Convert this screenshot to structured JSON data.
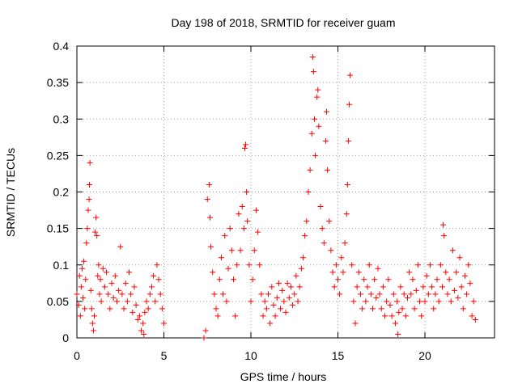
{
  "chart_data": {
    "type": "scatter",
    "title": "Day 198 of 2018, SRMTID for receiver guam",
    "xlabel": "GPS time / hours",
    "ylabel": "SRMTID / TECUs",
    "xlim": [
      0,
      24
    ],
    "ylim": [
      0,
      0.4
    ],
    "xticks": [
      0,
      5,
      10,
      15,
      20
    ],
    "yticks": [
      0,
      0.05,
      0.1,
      0.15,
      0.2,
      0.25,
      0.3,
      0.35,
      0.4
    ],
    "grid": true,
    "marker": "+",
    "color": "#ff0000",
    "series": [
      {
        "name": "SRMTID",
        "points": [
          [
            0.0,
            0.06
          ],
          [
            0.1,
            0.045
          ],
          [
            0.15,
            0.085
          ],
          [
            0.2,
            0.03
          ],
          [
            0.25,
            0.07
          ],
          [
            0.3,
            0.095
          ],
          [
            0.35,
            0.055
          ],
          [
            0.4,
            0.105
          ],
          [
            0.45,
            0.04
          ],
          [
            0.5,
            0.08
          ],
          [
            0.55,
            0.13
          ],
          [
            0.6,
            0.15
          ],
          [
            0.65,
            0.175
          ],
          [
            0.7,
            0.19
          ],
          [
            0.72,
            0.21
          ],
          [
            0.75,
            0.24
          ],
          [
            0.8,
            0.065
          ],
          [
            0.85,
            0.04
          ],
          [
            0.9,
            0.02
          ],
          [
            0.95,
            0.01
          ],
          [
            1.0,
            0.03
          ],
          [
            1.05,
            0.145
          ],
          [
            1.1,
            0.165
          ],
          [
            1.15,
            0.14
          ],
          [
            1.2,
            0.085
          ],
          [
            1.25,
            0.1
          ],
          [
            1.3,
            0.06
          ],
          [
            1.35,
            0.08
          ],
          [
            1.4,
            0.05
          ],
          [
            1.5,
            0.095
          ],
          [
            1.6,
            0.07
          ],
          [
            1.7,
            0.09
          ],
          [
            1.8,
            0.06
          ],
          [
            1.9,
            0.04
          ],
          [
            2.0,
            0.075
          ],
          [
            2.1,
            0.055
          ],
          [
            2.2,
            0.085
          ],
          [
            2.3,
            0.05
          ],
          [
            2.4,
            0.065
          ],
          [
            2.5,
            0.125
          ],
          [
            2.6,
            0.06
          ],
          [
            2.7,
            0.04
          ],
          [
            2.8,
            0.075
          ],
          [
            2.9,
            0.05
          ],
          [
            3.0,
            0.09
          ],
          [
            3.1,
            0.06
          ],
          [
            3.2,
            0.035
          ],
          [
            3.3,
            0.07
          ],
          [
            3.4,
            0.045
          ],
          [
            3.5,
            0.025
          ],
          [
            3.6,
            0.03
          ],
          [
            3.7,
            0.01
          ],
          [
            3.8,
            0.02
          ],
          [
            3.85,
            0.005
          ],
          [
            3.9,
            0.035
          ],
          [
            4.0,
            0.05
          ],
          [
            4.1,
            0.04
          ],
          [
            4.2,
            0.06
          ],
          [
            4.3,
            0.07
          ],
          [
            4.4,
            0.085
          ],
          [
            4.5,
            0.05
          ],
          [
            4.6,
            0.1
          ],
          [
            4.7,
            0.08
          ],
          [
            4.8,
            0.06
          ],
          [
            4.9,
            0.04
          ],
          [
            5.0,
            0.02
          ],
          [
            7.3,
            0.0
          ],
          [
            7.4,
            0.01
          ],
          [
            7.5,
            0.19
          ],
          [
            7.6,
            0.21
          ],
          [
            7.65,
            0.165
          ],
          [
            7.7,
            0.125
          ],
          [
            7.8,
            0.09
          ],
          [
            7.9,
            0.06
          ],
          [
            8.0,
            0.04
          ],
          [
            8.1,
            0.03
          ],
          [
            8.2,
            0.08
          ],
          [
            8.3,
            0.11
          ],
          [
            8.4,
            0.06
          ],
          [
            8.5,
            0.14
          ],
          [
            8.6,
            0.05
          ],
          [
            8.7,
            0.095
          ],
          [
            8.8,
            0.15
          ],
          [
            8.9,
            0.12
          ],
          [
            9.0,
            0.08
          ],
          [
            9.1,
            0.03
          ],
          [
            9.2,
            0.1
          ],
          [
            9.3,
            0.17
          ],
          [
            9.4,
            0.12
          ],
          [
            9.5,
            0.18
          ],
          [
            9.6,
            0.15
          ],
          [
            9.65,
            0.26
          ],
          [
            9.7,
            0.265
          ],
          [
            9.75,
            0.2
          ],
          [
            9.8,
            0.16
          ],
          [
            9.9,
            0.1
          ],
          [
            10.0,
            0.05
          ],
          [
            10.1,
            0.08
          ],
          [
            10.2,
            0.12
          ],
          [
            10.3,
            0.175
          ],
          [
            10.4,
            0.145
          ],
          [
            10.5,
            0.1
          ],
          [
            10.6,
            0.06
          ],
          [
            10.7,
            0.03
          ],
          [
            10.8,
            0.05
          ],
          [
            10.9,
            0.04
          ],
          [
            11.0,
            0.06
          ],
          [
            11.1,
            0.02
          ],
          [
            11.2,
            0.07
          ],
          [
            11.3,
            0.045
          ],
          [
            11.4,
            0.03
          ],
          [
            11.5,
            0.055
          ],
          [
            11.6,
            0.075
          ],
          [
            11.7,
            0.04
          ],
          [
            11.8,
            0.065
          ],
          [
            11.9,
            0.05
          ],
          [
            12.0,
            0.035
          ],
          [
            12.1,
            0.075
          ],
          [
            12.2,
            0.055
          ],
          [
            12.3,
            0.07
          ],
          [
            12.4,
            0.045
          ],
          [
            12.5,
            0.06
          ],
          [
            12.6,
            0.085
          ],
          [
            12.7,
            0.05
          ],
          [
            12.8,
            0.07
          ],
          [
            12.9,
            0.095
          ],
          [
            13.0,
            0.11
          ],
          [
            13.1,
            0.14
          ],
          [
            13.2,
            0.16
          ],
          [
            13.3,
            0.2
          ],
          [
            13.4,
            0.23
          ],
          [
            13.5,
            0.28
          ],
          [
            13.55,
            0.385
          ],
          [
            13.6,
            0.365
          ],
          [
            13.65,
            0.3
          ],
          [
            13.7,
            0.25
          ],
          [
            13.8,
            0.33
          ],
          [
            13.85,
            0.34
          ],
          [
            13.9,
            0.29
          ],
          [
            14.0,
            0.18
          ],
          [
            14.1,
            0.15
          ],
          [
            14.2,
            0.13
          ],
          [
            14.3,
            0.27
          ],
          [
            14.35,
            0.31
          ],
          [
            14.4,
            0.23
          ],
          [
            14.5,
            0.16
          ],
          [
            14.6,
            0.12
          ],
          [
            14.7,
            0.09
          ],
          [
            14.8,
            0.07
          ],
          [
            14.9,
            0.1
          ],
          [
            15.0,
            0.08
          ],
          [
            15.1,
            0.06
          ],
          [
            15.2,
            0.11
          ],
          [
            15.3,
            0.09
          ],
          [
            15.4,
            0.13
          ],
          [
            15.5,
            0.17
          ],
          [
            15.55,
            0.21
          ],
          [
            15.6,
            0.27
          ],
          [
            15.65,
            0.32
          ],
          [
            15.7,
            0.36
          ],
          [
            15.8,
            0.1
          ],
          [
            15.9,
            0.05
          ],
          [
            16.0,
            0.02
          ],
          [
            16.1,
            0.07
          ],
          [
            16.2,
            0.09
          ],
          [
            16.3,
            0.06
          ],
          [
            16.4,
            0.04
          ],
          [
            16.5,
            0.08
          ],
          [
            16.6,
            0.05
          ],
          [
            16.7,
            0.07
          ],
          [
            16.8,
            0.1
          ],
          [
            16.9,
            0.06
          ],
          [
            17.0,
            0.04
          ],
          [
            17.1,
            0.08
          ],
          [
            17.2,
            0.055
          ],
          [
            17.3,
            0.095
          ],
          [
            17.4,
            0.06
          ],
          [
            17.5,
            0.04
          ],
          [
            17.6,
            0.07
          ],
          [
            17.7,
            0.03
          ],
          [
            17.8,
            0.05
          ],
          [
            17.9,
            0.08
          ],
          [
            18.0,
            0.045
          ],
          [
            18.1,
            0.03
          ],
          [
            18.2,
            0.06
          ],
          [
            18.3,
            0.02
          ],
          [
            18.4,
            0.05
          ],
          [
            18.45,
            0.005
          ],
          [
            18.5,
            0.035
          ],
          [
            18.6,
            0.07
          ],
          [
            18.7,
            0.04
          ],
          [
            18.8,
            0.06
          ],
          [
            18.9,
            0.03
          ],
          [
            19.0,
            0.055
          ],
          [
            19.1,
            0.09
          ],
          [
            19.2,
            0.06
          ],
          [
            19.3,
            0.08
          ],
          [
            19.4,
            0.04
          ],
          [
            19.5,
            0.065
          ],
          [
            19.6,
            0.1
          ],
          [
            19.7,
            0.05
          ],
          [
            19.8,
            0.03
          ],
          [
            19.9,
            0.07
          ],
          [
            20.0,
            0.05
          ],
          [
            20.1,
            0.085
          ],
          [
            20.2,
            0.06
          ],
          [
            20.3,
            0.1
          ],
          [
            20.4,
            0.07
          ],
          [
            20.5,
            0.04
          ],
          [
            20.6,
            0.06
          ],
          [
            20.7,
            0.08
          ],
          [
            20.8,
            0.05
          ],
          [
            20.9,
            0.1
          ],
          [
            21.0,
            0.07
          ],
          [
            21.05,
            0.155
          ],
          [
            21.1,
            0.14
          ],
          [
            21.2,
            0.09
          ],
          [
            21.3,
            0.06
          ],
          [
            21.4,
            0.08
          ],
          [
            21.5,
            0.05
          ],
          [
            21.6,
            0.12
          ],
          [
            21.7,
            0.065
          ],
          [
            21.8,
            0.09
          ],
          [
            21.9,
            0.055
          ],
          [
            22.0,
            0.11
          ],
          [
            22.1,
            0.07
          ],
          [
            22.2,
            0.04
          ],
          [
            22.3,
            0.085
          ],
          [
            22.4,
            0.06
          ],
          [
            22.5,
            0.1
          ],
          [
            22.6,
            0.075
          ],
          [
            22.7,
            0.03
          ],
          [
            22.8,
            0.05
          ],
          [
            22.9,
            0.025
          ]
        ]
      }
    ]
  }
}
